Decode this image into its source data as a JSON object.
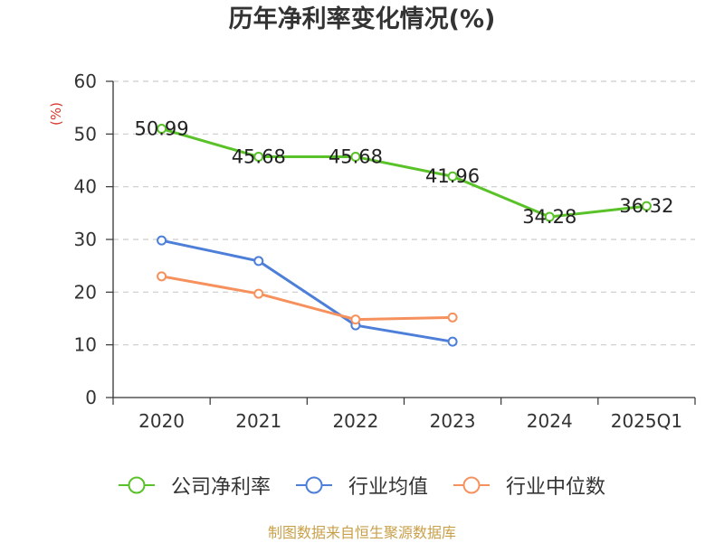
{
  "source_note": "制图数据来自恒生聚源数据库",
  "colors": {
    "ylabel": "#d9362c",
    "source_note": "#c9a04a",
    "axis": "#333333",
    "grid": "#cccccc"
  },
  "chart_data": {
    "type": "line",
    "title": "历年净利率变化情况(%)",
    "ylabel": "(%)",
    "categories": [
      "2020",
      "2021",
      "2022",
      "2023",
      "2024",
      "2025Q1"
    ],
    "ylim": [
      0,
      60
    ],
    "yticks": [
      0,
      10,
      20,
      30,
      40,
      50,
      60
    ],
    "grid": true,
    "legend": "bottom",
    "series": [
      {
        "name": "公司净利率",
        "color": "#5ac229",
        "show_labels": true,
        "values": [
          50.99,
          45.68,
          45.68,
          41.96,
          34.28,
          36.32
        ]
      },
      {
        "name": "行业均值",
        "color": "#4d7fd9",
        "show_labels": false,
        "values": [
          29.8,
          25.9,
          13.7,
          10.6,
          null,
          null
        ]
      },
      {
        "name": "行业中位数",
        "color": "#f6915d",
        "show_labels": false,
        "values": [
          23.0,
          19.7,
          14.8,
          15.2,
          null,
          null
        ]
      }
    ]
  }
}
